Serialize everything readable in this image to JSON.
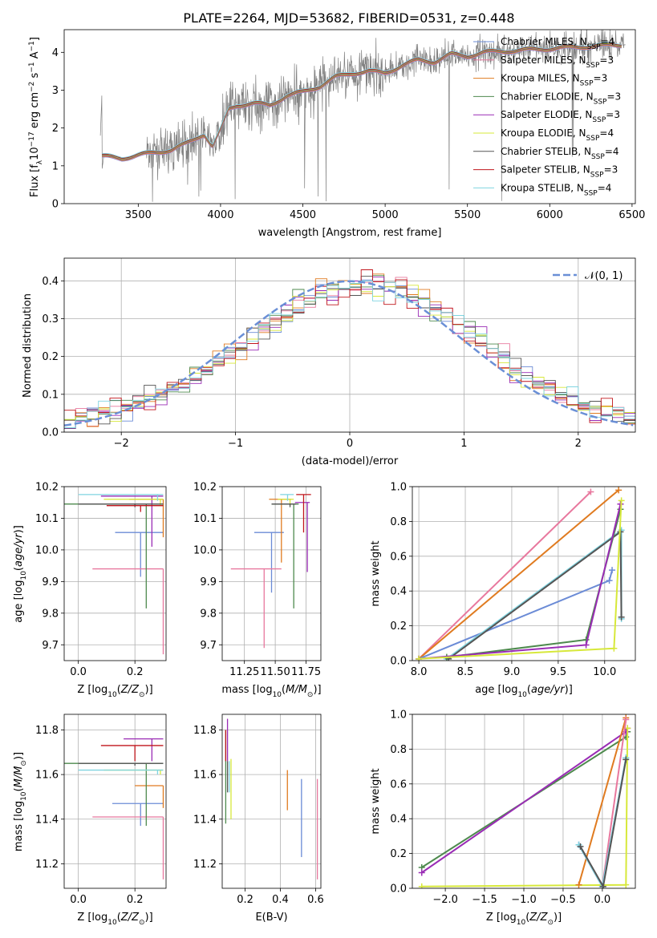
{
  "figure": {
    "title": "PLATE=2264, MJD=53682, FIBERID=0531, z=0.448"
  },
  "colors": {
    "chabrier_miles": "#6b8bd6",
    "salpeter_miles": "#e8789e",
    "kroupa_miles": "#e07b20",
    "chabrier_elodie": "#4e8a4e",
    "salpeter_elodie": "#9a2cb5",
    "kroupa_elodie": "#d7e83a",
    "chabrier_stelib": "#555555",
    "salpeter_stelib": "#c0161c",
    "kroupa_stelib": "#7fd4e0",
    "data": "#808080",
    "normal": "#6a8fd6"
  },
  "chart_data": [
    {
      "id": "spectrum",
      "type": "line",
      "xlabel": "wavelength [Angstrom, rest frame]",
      "ylabel": "Flux [f_λ 10^-17 erg cm^-2 s^-1 A^-1]",
      "xlim": [
        3050,
        6520
      ],
      "ylim": [
        0,
        4.6
      ],
      "xticks": [
        3500,
        4000,
        4500,
        5000,
        5500,
        6000,
        6500
      ],
      "yticks": [
        0,
        1,
        2,
        3,
        4
      ],
      "grid": false,
      "legend_position": "top-right",
      "legend": [
        {
          "base": "Chabrier MILES, N",
          "sub": "SSP",
          "tail": "=4",
          "color": "chabrier_miles"
        },
        {
          "base": "Salpeter MILES, N",
          "sub": "SSP",
          "tail": "=3",
          "color": "salpeter_miles"
        },
        {
          "base": "Kroupa MILES, N",
          "sub": "SSP",
          "tail": "=3",
          "color": "kroupa_miles"
        },
        {
          "base": "Chabrier ELODIE, N",
          "sub": "SSP",
          "tail": "=3",
          "color": "chabrier_elodie"
        },
        {
          "base": "Salpeter ELODIE, N",
          "sub": "SSP",
          "tail": "=3",
          "color": "salpeter_elodie"
        },
        {
          "base": "Kroupa ELODIE, N",
          "sub": "SSP",
          "tail": "=4",
          "color": "kroupa_elodie"
        },
        {
          "base": "Chabrier STELIB, N",
          "sub": "SSP",
          "tail": "=4",
          "color": "chabrier_stelib"
        },
        {
          "base": "Salpeter STELIB, N",
          "sub": "SSP",
          "tail": "=3",
          "color": "salpeter_stelib"
        },
        {
          "base": "Kroupa STELIB, N",
          "sub": "SSP",
          "tail": "=4",
          "color": "kroupa_stelib"
        }
      ],
      "model_continuum": [
        [
          3280,
          1.25
        ],
        [
          3400,
          1.2
        ],
        [
          3500,
          1.28
        ],
        [
          3600,
          1.35
        ],
        [
          3700,
          1.42
        ],
        [
          3800,
          1.6
        ],
        [
          3900,
          1.85
        ],
        [
          3950,
          1.5
        ],
        [
          4000,
          1.95
        ],
        [
          4050,
          2.5
        ],
        [
          4100,
          2.6
        ],
        [
          4200,
          2.65
        ],
        [
          4300,
          2.6
        ],
        [
          4400,
          2.85
        ],
        [
          4500,
          2.95
        ],
        [
          4600,
          3.1
        ],
        [
          4700,
          3.35
        ],
        [
          4800,
          3.45
        ],
        [
          4900,
          3.5
        ],
        [
          5000,
          3.45
        ],
        [
          5100,
          3.65
        ],
        [
          5200,
          3.8
        ],
        [
          5300,
          3.75
        ],
        [
          5400,
          3.95
        ],
        [
          5500,
          3.9
        ],
        [
          5600,
          4.0
        ],
        [
          5800,
          4.05
        ],
        [
          6000,
          4.1
        ],
        [
          6200,
          4.15
        ],
        [
          6440,
          4.2
        ]
      ],
      "data_start": 3270,
      "data_end": 6460
    },
    {
      "id": "residuals",
      "type": "line",
      "xlabel": "(data-model)/error",
      "ylabel": "Normed distribution",
      "xlim": [
        -2.5,
        2.5
      ],
      "ylim": [
        0,
        0.46
      ],
      "xticks": [
        -2,
        -1,
        0,
        1,
        2
      ],
      "xtick_labels": [
        "−2",
        "−1",
        "0",
        "1",
        "2"
      ],
      "yticks": [
        0.0,
        0.1,
        0.2,
        0.3,
        0.4
      ],
      "ytick_labels": [
        "0.0",
        "0.1",
        "0.2",
        "0.3",
        "0.4"
      ],
      "grid": true,
      "legend_position": "top-right",
      "normal_label": "𝒩(0, 1)",
      "normal_curve": {
        "mean": 0,
        "sigma": 1
      },
      "bin_width": 0.1
    },
    {
      "id": "age_vs_Z",
      "type": "scatter",
      "xlabel_base": "Z [log",
      "xlabel_sub": "10",
      "xlabel_tail": "(Z/Z",
      "xlabel": "Z [log10(Z/Z⊙)]",
      "ylabel": "age [log10(age/yr)]",
      "xlim": [
        -0.05,
        0.31
      ],
      "ylim": [
        9.65,
        10.2
      ],
      "xticks": [
        0.0,
        0.2
      ],
      "xtick_labels": [
        "0.0",
        "0.2"
      ],
      "yticks": [
        9.7,
        9.8,
        9.9,
        10.0,
        10.1,
        10.2
      ],
      "ytick_labels": [
        "9.7",
        "9.8",
        "9.9",
        "10.0",
        "10.1",
        "10.2"
      ],
      "grid": true,
      "points": [
        {
          "color": "chabrier_miles",
          "x": 0.22,
          "xerr": [
            0.09,
            0.08
          ],
          "y": 10.055,
          "yerr": [
            0.14,
            0.0
          ]
        },
        {
          "color": "salpeter_miles",
          "x": 0.3,
          "xerr": [
            0.25,
            0.0
          ],
          "y": 9.94,
          "yerr": [
            0.27,
            0.0
          ]
        },
        {
          "color": "kroupa_miles",
          "x": 0.3,
          "xerr": [
            0.12,
            0.0
          ],
          "y": 10.16,
          "yerr": [
            0.12,
            0.0
          ]
        },
        {
          "color": "chabrier_elodie",
          "x": 0.24,
          "xerr": [
            0.33,
            0.06
          ],
          "y": 10.145,
          "yerr": [
            0.33,
            0.0
          ]
        },
        {
          "color": "salpeter_elodie",
          "x": 0.26,
          "xerr": [
            0.18,
            0.04
          ],
          "y": 10.17,
          "yerr": [
            0.16,
            0.0
          ]
        },
        {
          "color": "kroupa_elodie",
          "x": 0.29,
          "xerr": [
            0.2,
            0.01
          ],
          "y": 10.16,
          "yerr": [
            0.02,
            0.0
          ]
        },
        {
          "color": "chabrier_stelib",
          "x": 0.2,
          "xerr": [
            0.2,
            0.1
          ],
          "y": 10.145,
          "yerr": [
            0.01,
            0.0
          ]
        },
        {
          "color": "salpeter_stelib",
          "x": 0.22,
          "xerr": [
            0.12,
            0.08
          ],
          "y": 10.14,
          "yerr": [
            0.02,
            0.0
          ]
        },
        {
          "color": "kroupa_stelib",
          "x": 0.28,
          "xerr": [
            0.28,
            0.02
          ],
          "y": 10.175,
          "yerr": [
            0.02,
            0.0
          ]
        }
      ]
    },
    {
      "id": "age_vs_mass",
      "type": "scatter",
      "xlabel": "mass [log10(M/M⊙)]",
      "xlim": [
        11.07,
        11.87
      ],
      "ylim": [
        9.65,
        10.2
      ],
      "xticks": [
        11.25,
        11.5,
        11.75
      ],
      "xtick_labels": [
        "11.25",
        "11.50",
        "11.75"
      ],
      "yticks": [
        9.7,
        9.8,
        9.9,
        10.0,
        10.1,
        10.2
      ],
      "ytick_labels": [
        "9.7",
        "9.8",
        "9.9",
        "10.0",
        "10.1",
        "10.2"
      ],
      "grid": true,
      "points": [
        {
          "color": "chabrier_miles",
          "x": 11.47,
          "xerr": [
            0.14,
            0.1
          ],
          "y": 10.055,
          "yerr": [
            0.19,
            0.0
          ]
        },
        {
          "color": "salpeter_miles",
          "x": 11.41,
          "xerr": [
            0.27,
            0.14
          ],
          "y": 9.94,
          "yerr": [
            0.25,
            0.0
          ]
        },
        {
          "color": "kroupa_miles",
          "x": 11.55,
          "xerr": [
            0.1,
            0.08
          ],
          "y": 10.16,
          "yerr": [
            0.2,
            0.0
          ]
        },
        {
          "color": "chabrier_elodie",
          "x": 11.65,
          "xerr": [
            0.18,
            0.04
          ],
          "y": 10.145,
          "yerr": [
            0.33,
            0.0
          ]
        },
        {
          "color": "salpeter_elodie",
          "x": 11.76,
          "xerr": [
            0.1,
            0.02
          ],
          "y": 10.15,
          "yerr": [
            0.22,
            0.0
          ]
        },
        {
          "color": "kroupa_elodie",
          "x": 11.62,
          "xerr": [
            0.1,
            0.03
          ],
          "y": 10.16,
          "yerr": [
            0.02,
            0.0
          ]
        },
        {
          "color": "chabrier_stelib",
          "x": 11.62,
          "xerr": [
            0.15,
            0.05
          ],
          "y": 10.145,
          "yerr": [
            0.01,
            0.0
          ]
        },
        {
          "color": "salpeter_stelib",
          "x": 11.73,
          "xerr": [
            0.06,
            0.06
          ],
          "y": 10.175,
          "yerr": [
            0.12,
            0.0
          ]
        },
        {
          "color": "kroupa_stelib",
          "x": 11.6,
          "xerr": [
            0.06,
            0.05
          ],
          "y": 10.175,
          "yerr": [
            0.02,
            0.0
          ]
        }
      ]
    },
    {
      "id": "mass_weight_vs_age",
      "type": "line",
      "xlabel": "age [log10(age/yr)]",
      "ylabel": "mass weight",
      "xlim": [
        7.93,
        10.33
      ],
      "ylim": [
        0,
        1
      ],
      "xticks": [
        8.0,
        8.5,
        9.0,
        9.5,
        10.0
      ],
      "xtick_labels": [
        "8.0",
        "8.5",
        "9.0",
        "9.5",
        "10.0"
      ],
      "yticks": [
        0.0,
        0.2,
        0.4,
        0.6,
        0.8,
        1.0
      ],
      "ytick_labels": [
        "0.0",
        "0.2",
        "0.4",
        "0.6",
        "0.8",
        "1.0"
      ],
      "grid": true,
      "series": [
        {
          "color": "salpeter_miles",
          "x": [
            8.0,
            9.85
          ],
          "y": [
            0.01,
            0.97
          ]
        },
        {
          "color": "kroupa_miles",
          "x": [
            8.0,
            10.15
          ],
          "y": [
            0.01,
            0.98
          ]
        },
        {
          "color": "chabrier_miles",
          "x": [
            8.0,
            10.05,
            10.08
          ],
          "y": [
            0.01,
            0.46,
            0.52
          ]
        },
        {
          "color": "kroupa_stelib",
          "x": [
            8.3,
            10.18,
            10.18
          ],
          "y": [
            0.01,
            0.75,
            0.24
          ]
        },
        {
          "color": "chabrier_stelib",
          "x": [
            8.32,
            10.17,
            10.18
          ],
          "y": [
            0.01,
            0.74,
            0.25
          ]
        },
        {
          "color": "chabrier_elodie",
          "x": [
            8.3,
            9.8,
            10.17
          ],
          "y": [
            0.02,
            0.12,
            0.87
          ]
        },
        {
          "color": "salpeter_elodie",
          "x": [
            8.0,
            9.8,
            10.17
          ],
          "y": [
            0.01,
            0.09,
            0.9
          ]
        },
        {
          "color": "kroupa_elodie",
          "x": [
            8.0,
            10.1,
            10.18
          ],
          "y": [
            0.01,
            0.07,
            0.92
          ]
        }
      ]
    },
    {
      "id": "mass_vs_Z",
      "type": "scatter",
      "xlabel": "Z [log10(Z/Z⊙)]",
      "ylabel": "mass [log10(M/M⊙)]",
      "xlim": [
        -0.05,
        0.31
      ],
      "ylim": [
        11.09,
        11.87
      ],
      "xticks": [
        0.0,
        0.2
      ],
      "xtick_labels": [
        "0.0",
        "0.2"
      ],
      "yticks": [
        11.2,
        11.4,
        11.6,
        11.8
      ],
      "ytick_labels": [
        "11.2",
        "11.4",
        "11.6",
        "11.8"
      ],
      "grid": true,
      "points": [
        {
          "color": "chabrier_miles",
          "x": 0.22,
          "xerr": [
            0.1,
            0.08
          ],
          "y": 11.47,
          "yerr": [
            0.1,
            0.0
          ]
        },
        {
          "color": "salpeter_miles",
          "x": 0.3,
          "xerr": [
            0.25,
            0.0
          ],
          "y": 11.41,
          "yerr": [
            0.28,
            0.0
          ]
        },
        {
          "color": "kroupa_miles",
          "x": 0.3,
          "xerr": [
            0.1,
            0.0
          ],
          "y": 11.55,
          "yerr": [
            0.1,
            0.0
          ]
        },
        {
          "color": "chabrier_elodie",
          "x": 0.24,
          "xerr": [
            0.33,
            0.06
          ],
          "y": 11.65,
          "yerr": [
            0.28,
            0.0
          ]
        },
        {
          "color": "salpeter_elodie",
          "x": 0.26,
          "xerr": [
            0.1,
            0.04
          ],
          "y": 11.76,
          "yerr": [
            0.1,
            0.0
          ]
        },
        {
          "color": "kroupa_elodie",
          "x": 0.29,
          "xerr": [
            0.2,
            0.01
          ],
          "y": 11.62,
          "yerr": [
            0.02,
            0.0
          ]
        },
        {
          "color": "chabrier_stelib",
          "x": 0.2,
          "xerr": [
            0.2,
            0.1
          ],
          "y": 11.65,
          "yerr": [
            0.01,
            0.0
          ]
        },
        {
          "color": "salpeter_stelib",
          "x": 0.2,
          "xerr": [
            0.12,
            0.1
          ],
          "y": 11.73,
          "yerr": [
            0.07,
            0.0
          ]
        },
        {
          "color": "kroupa_stelib",
          "x": 0.28,
          "xerr": [
            0.28,
            0.02
          ],
          "y": 11.62,
          "yerr": [
            0.02,
            0.0
          ]
        }
      ]
    },
    {
      "id": "mass_vs_ebv",
      "type": "scatter",
      "xlabel": "E(B-V)",
      "xlim": [
        0.07,
        0.63
      ],
      "ylim": [
        11.09,
        11.87
      ],
      "xticks": [
        0.2,
        0.4,
        0.6
      ],
      "xtick_labels": [
        "0.2",
        "0.4",
        "0.6"
      ],
      "yticks": [
        11.2,
        11.4,
        11.6,
        11.8
      ],
      "ytick_labels": [
        "11.2",
        "11.4",
        "11.6",
        "11.8"
      ],
      "grid": true,
      "points": [
        {
          "color": "chabrier_miles",
          "x": 0.52,
          "y": 11.47,
          "yerr": [
            0.24,
            0.11
          ]
        },
        {
          "color": "salpeter_miles",
          "x": 0.61,
          "y": 11.41,
          "yerr": [
            0.28,
            0.17
          ]
        },
        {
          "color": "kroupa_miles",
          "x": 0.44,
          "y": 11.55,
          "yerr": [
            0.11,
            0.07
          ]
        },
        {
          "color": "chabrier_elodie",
          "x": 0.09,
          "y": 11.6,
          "yerr": [
            0.22,
            0.2
          ]
        },
        {
          "color": "salpeter_elodie",
          "x": 0.1,
          "y": 11.76,
          "yerr": [
            0.1,
            0.09
          ]
        },
        {
          "color": "kroupa_elodie",
          "x": 0.12,
          "y": 11.55,
          "yerr": [
            0.15,
            0.12
          ]
        },
        {
          "color": "chabrier_stelib",
          "x": 0.1,
          "y": 11.6,
          "yerr": [
            0.08,
            0.06
          ]
        },
        {
          "color": "salpeter_stelib",
          "x": 0.09,
          "y": 11.73,
          "yerr": [
            0.07,
            0.07
          ]
        },
        {
          "color": "kroupa_stelib",
          "x": 0.11,
          "y": 11.6,
          "yerr": [
            0.08,
            0.06
          ]
        }
      ]
    },
    {
      "id": "mass_weight_vs_Z",
      "type": "line",
      "xlabel": "Z [log10(Z/Z⊙)]",
      "ylabel": "mass weight",
      "xlim": [
        -2.42,
        0.42
      ],
      "ylim": [
        0,
        1
      ],
      "xticks": [
        -2.0,
        -1.5,
        -1.0,
        -0.5,
        0.0
      ],
      "xtick_labels": [
        "−2.0",
        "−1.5",
        "−1.0",
        "−0.5",
        "0.0"
      ],
      "yticks": [
        0.0,
        0.2,
        0.4,
        0.6,
        0.8,
        1.0
      ],
      "ytick_labels": [
        "0.0",
        "0.2",
        "0.4",
        "0.6",
        "0.8",
        "1.0"
      ],
      "grid": true,
      "series": [
        {
          "color": "chabrier_elodie",
          "x": [
            -2.3,
            0.3,
            0.32
          ],
          "y": [
            0.12,
            0.87,
            0.9
          ]
        },
        {
          "color": "salpeter_elodie",
          "x": [
            -2.3,
            0.3,
            0.32
          ],
          "y": [
            0.09,
            0.9,
            0.92
          ]
        },
        {
          "color": "kroupa_elodie",
          "x": [
            -2.3,
            0.3,
            0.32
          ],
          "y": [
            0.01,
            0.02,
            0.92
          ]
        },
        {
          "color": "kroupa_miles",
          "x": [
            -0.3,
            0.3
          ],
          "y": [
            0.02,
            0.98
          ]
        },
        {
          "color": "salpeter_miles",
          "x": [
            0.0,
            0.3
          ],
          "y": [
            0.01,
            0.97
          ]
        },
        {
          "color": "chabrier_miles",
          "x": [
            -0.3,
            0.0,
            0.3
          ],
          "y": [
            0.25,
            0.01,
            0.75
          ]
        },
        {
          "color": "kroupa_stelib",
          "x": [
            -0.3,
            0.0,
            0.3
          ],
          "y": [
            0.25,
            0.01,
            0.75
          ]
        },
        {
          "color": "chabrier_stelib",
          "x": [
            -0.28,
            0.01,
            0.3
          ],
          "y": [
            0.24,
            0.01,
            0.74
          ]
        }
      ]
    }
  ]
}
